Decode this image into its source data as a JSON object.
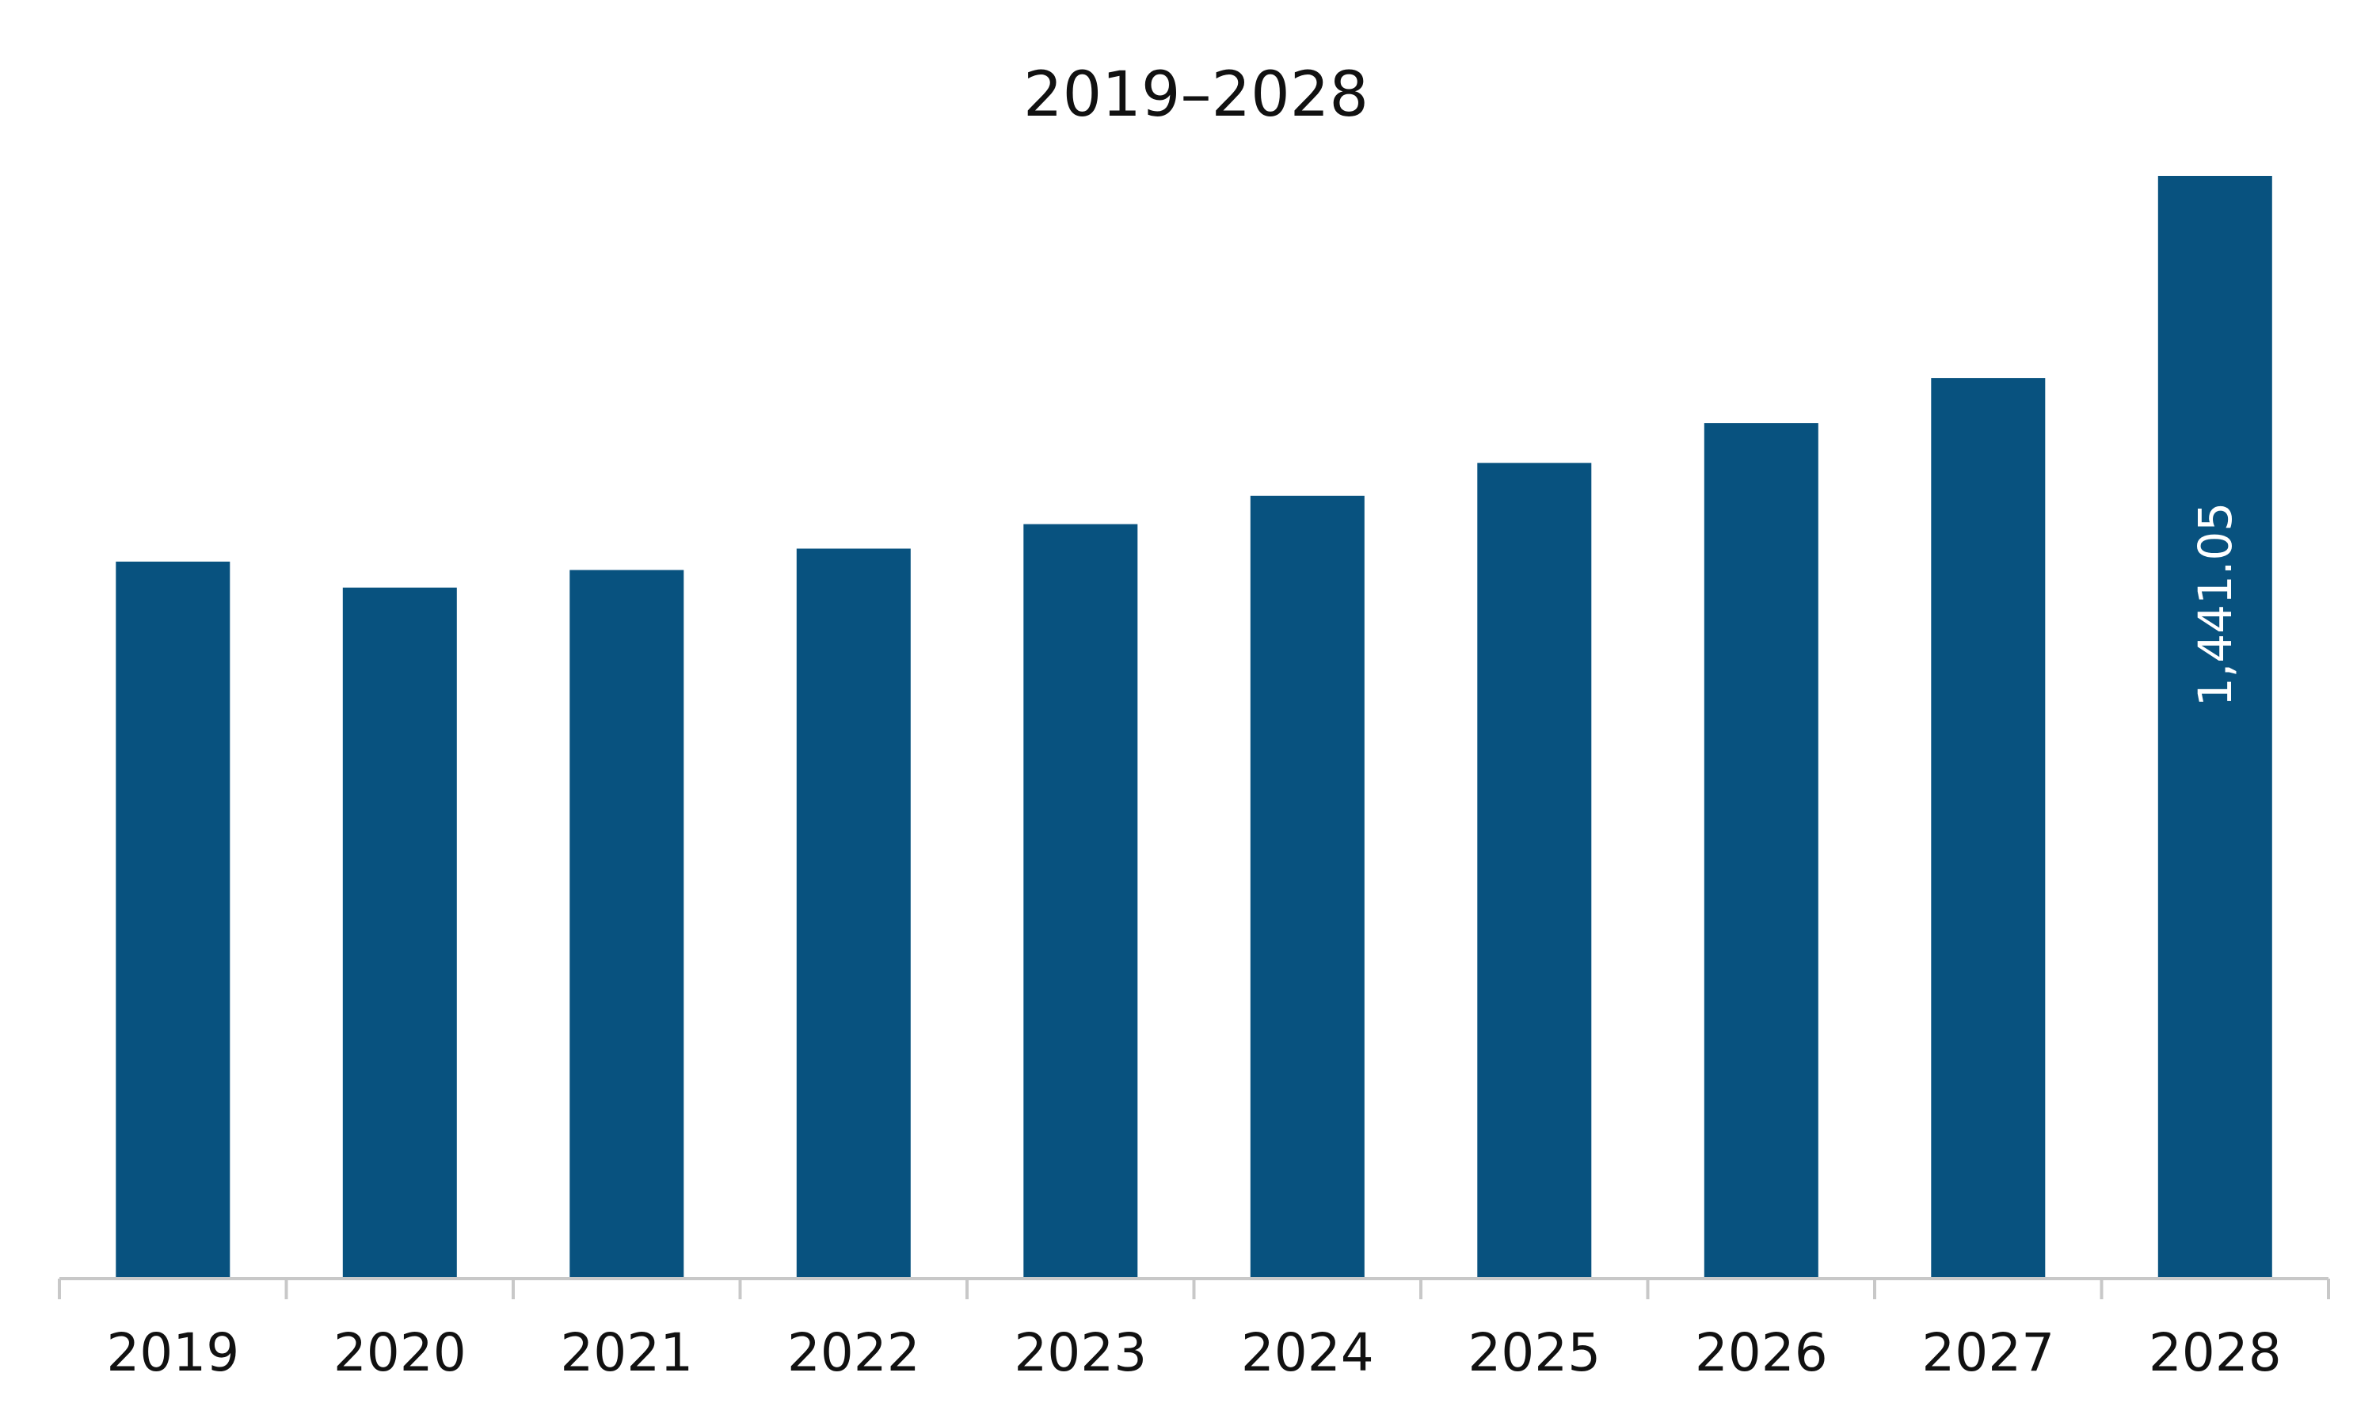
{
  "chart_data": {
    "type": "bar",
    "title": "2019–2028",
    "xlabel": "",
    "ylabel": "",
    "categories": [
      "2019",
      "2020",
      "2021",
      "2022",
      "2023",
      "2024",
      "2025",
      "2026",
      "2027",
      "2028"
    ],
    "values": [
      937,
      903,
      926,
      954,
      986,
      1023,
      1066,
      1118,
      1177,
      1441.05
    ],
    "data_labels": [
      "",
      "",
      "",
      "",
      "",
      "",
      "",
      "",
      "",
      "1,441.05"
    ],
    "ylim": [
      0,
      1500
    ],
    "grid": false,
    "legend": "none",
    "colors": {
      "bar": "#08527f",
      "axis": "#c8c8c8",
      "text": "#111111",
      "label": "#ffffff"
    }
  }
}
